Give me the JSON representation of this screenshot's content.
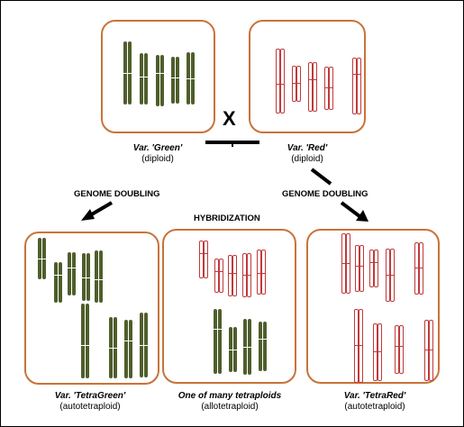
{
  "parents": {
    "green": {
      "title": "Var. 'Green'",
      "ploidy": "(diploid)",
      "color": "#4f5e2c"
    },
    "red": {
      "title": "Var. 'Red'",
      "ploidy": "(diploid)",
      "color": "#c0393b"
    },
    "cross_symbol": "X"
  },
  "processes": {
    "left": "GENOME DOUBLING",
    "right": "GENOME DOUBLING",
    "center": "HYBRIDIZATION"
  },
  "offspring": {
    "tetragreen": {
      "title": "Var. 'TetraGreen'",
      "ploidy": "(autotetraploid)"
    },
    "hybrid": {
      "title": "One of many tetraploids",
      "ploidy": "(allotetraploid)"
    },
    "tetrared": {
      "title": "Var. 'TetraRed'",
      "ploidy": "(autotetraploid)"
    }
  },
  "colors": {
    "panel_border": "#c8733a",
    "green_chromosome": "#4f5e2c",
    "red_chromosome": "#c0393b"
  }
}
